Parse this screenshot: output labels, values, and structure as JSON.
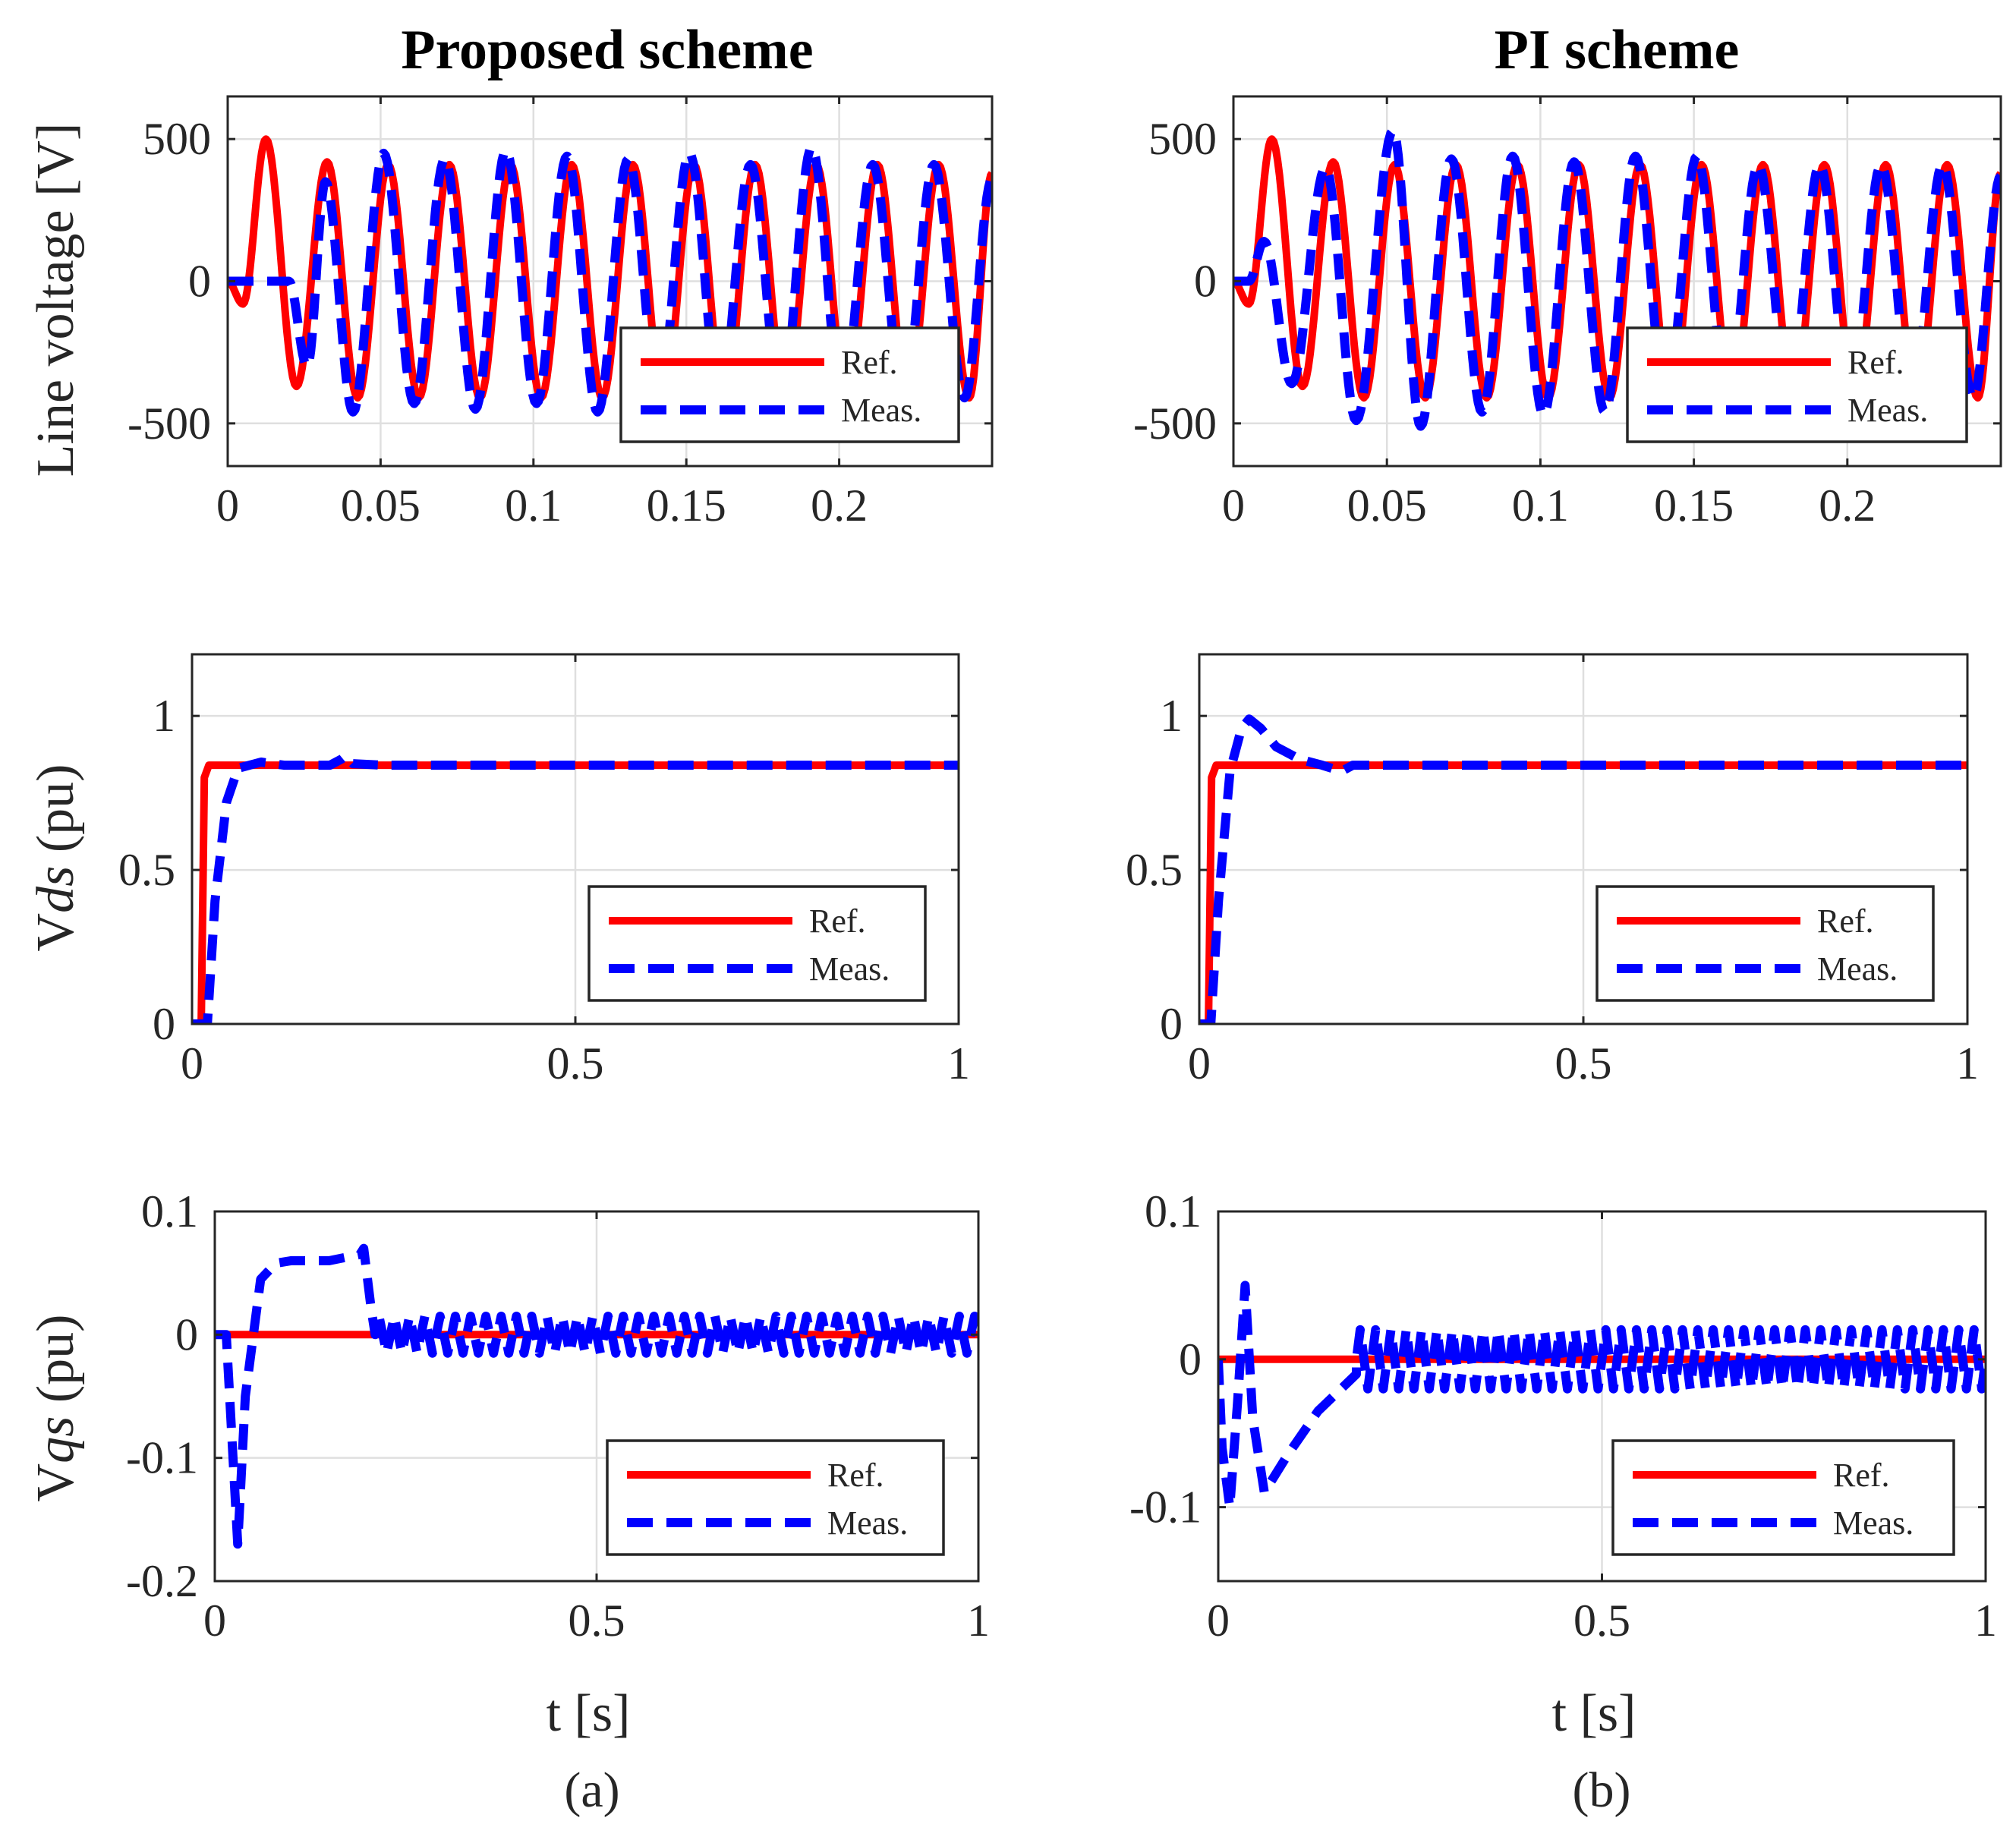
{
  "figure": {
    "col_titles": [
      "Proposed scheme",
      "PI scheme"
    ],
    "captions": [
      "(a)",
      "(b)"
    ],
    "xlabel": "t  [s]",
    "legend": {
      "ref": "Ref.",
      "meas": "Meas."
    },
    "colors": {
      "ref": "#ff0000",
      "meas": "#0000ff",
      "grid": "#dfdfdf",
      "axis": "#262626"
    }
  },
  "ylabels": {
    "line_voltage": "Line voltage [V]",
    "vds_prefix": "V",
    "vds_italic": "ds",
    "vds_suffix": " (pu)",
    "vqs_prefix": "V",
    "vqs_italic": "qs",
    "vqs_suffix": " (pu)"
  },
  "chart_data": [
    {
      "id": "a_voltage",
      "type": "line",
      "panel": "(a)",
      "row": 1,
      "xlim": [
        0,
        0.25
      ],
      "ylim": [
        -650,
        650
      ],
      "xticks": [
        0,
        0.05,
        0.1,
        0.15,
        0.2
      ],
      "xtick_labels": [
        "0",
        "0.05",
        "0.1",
        "0.15",
        "0.2"
      ],
      "yticks": [
        -500,
        0,
        500
      ],
      "ytick_labels": [
        "-500",
        "0",
        "500"
      ],
      "legend_position": "lower-right",
      "series": [
        {
          "name": "Ref.",
          "style": "solid",
          "description": "sinusoid, ~50 Hz, peak ~500 V at start settling to ~410 V",
          "x": [
            0,
            0.005,
            0.0125,
            0.0225,
            0.0325,
            0.0425,
            0.0525,
            0.0625,
            0.0725,
            0.0825,
            0.0925,
            0.1025,
            0.1125,
            0.1225,
            0.1325,
            0.1425,
            0.1525,
            0.1625,
            0.1725,
            0.1825,
            0.1925,
            0.2025,
            0.2125,
            0.2225,
            0.2325,
            0.2425,
            0.25
          ],
          "y": [
            0,
            -80,
            500,
            -370,
            420,
            -410,
            410,
            -410,
            410,
            -410,
            410,
            -410,
            410,
            -410,
            410,
            -410,
            410,
            -410,
            410,
            -410,
            410,
            -410,
            410,
            -410,
            410,
            -410,
            380
          ]
        },
        {
          "name": "Meas.",
          "style": "dashed",
          "description": "zero until ~0.02 s then tracks reference with small overshoot",
          "x": [
            0,
            0.02,
            0.026,
            0.032,
            0.041,
            0.051,
            0.061,
            0.071,
            0.081,
            0.091,
            0.101,
            0.111,
            0.121,
            0.131,
            0.141,
            0.151,
            0.161,
            0.171,
            0.181,
            0.191,
            0.201,
            0.211,
            0.221,
            0.231,
            0.241,
            0.25
          ],
          "y": [
            0,
            0,
            -300,
            350,
            -460,
            450,
            -430,
            430,
            -450,
            460,
            -430,
            440,
            -460,
            430,
            -400,
            450,
            -410,
            410,
            -420,
            470,
            -410,
            410,
            -410,
            410,
            -410,
            360
          ]
        }
      ]
    },
    {
      "id": "b_voltage",
      "type": "line",
      "panel": "(b)",
      "row": 1,
      "xlim": [
        0,
        0.25
      ],
      "ylim": [
        -650,
        650
      ],
      "xticks": [
        0,
        0.05,
        0.1,
        0.15,
        0.2
      ],
      "xtick_labels": [
        "0",
        "0.05",
        "0.1",
        "0.15",
        "0.2"
      ],
      "yticks": [
        -500,
        0,
        500
      ],
      "ytick_labels": [
        "-500",
        "0",
        "500"
      ],
      "legend_position": "lower-right",
      "series": [
        {
          "name": "Ref.",
          "style": "solid",
          "x": [
            0,
            0.005,
            0.0125,
            0.0225,
            0.0325,
            0.0425,
            0.0525,
            0.0625,
            0.0725,
            0.0825,
            0.0925,
            0.1025,
            0.1125,
            0.1225,
            0.1325,
            0.1425,
            0.1525,
            0.1625,
            0.1725,
            0.1825,
            0.1925,
            0.2025,
            0.2125,
            0.2225,
            0.2325,
            0.2425,
            0.25
          ],
          "y": [
            0,
            -80,
            500,
            -370,
            420,
            -410,
            410,
            -410,
            410,
            -410,
            410,
            -410,
            410,
            -410,
            410,
            -410,
            410,
            -410,
            410,
            -410,
            410,
            -410,
            410,
            -410,
            410,
            -410,
            380
          ]
        },
        {
          "name": "Meas.",
          "style": "dashed",
          "x": [
            0,
            0.005,
            0.01,
            0.019,
            0.03,
            0.04,
            0.052,
            0.061,
            0.071,
            0.081,
            0.091,
            0.101,
            0.111,
            0.121,
            0.131,
            0.141,
            0.151,
            0.161,
            0.171,
            0.181,
            0.191,
            0.201,
            0.211,
            0.221,
            0.231,
            0.241,
            0.25
          ],
          "y": [
            0,
            0,
            140,
            -360,
            400,
            -490,
            530,
            -510,
            430,
            -460,
            440,
            -470,
            420,
            -460,
            440,
            -410,
            440,
            -410,
            410,
            -410,
            410,
            -410,
            410,
            -410,
            410,
            -410,
            370
          ]
        }
      ]
    },
    {
      "id": "a_vds",
      "type": "line",
      "panel": "(a)",
      "row": 2,
      "xlim": [
        0,
        1
      ],
      "ylim": [
        0,
        1.2
      ],
      "xticks": [
        0,
        0.5,
        1
      ],
      "xtick_labels": [
        "0",
        "0.5",
        "1"
      ],
      "yticks": [
        0,
        0.5,
        1
      ],
      "ytick_labels": [
        "0",
        "0.5",
        "1"
      ],
      "legend_position": "lower-right",
      "series": [
        {
          "name": "Ref.",
          "style": "solid",
          "x": [
            0,
            0.012,
            0.016,
            0.022,
            1
          ],
          "y": [
            0,
            0,
            0.8,
            0.84,
            0.84
          ]
        },
        {
          "name": "Meas.",
          "style": "dashed",
          "x": [
            0,
            0.02,
            0.03,
            0.045,
            0.06,
            0.09,
            0.12,
            0.18,
            0.195,
            0.2,
            0.21,
            0.25,
            1
          ],
          "y": [
            0,
            0,
            0.4,
            0.72,
            0.83,
            0.85,
            0.84,
            0.84,
            0.86,
            0.87,
            0.845,
            0.84,
            0.84
          ]
        }
      ]
    },
    {
      "id": "b_vds",
      "type": "line",
      "panel": "(b)",
      "row": 2,
      "xlim": [
        0,
        1
      ],
      "ylim": [
        0,
        1.2
      ],
      "xticks": [
        0,
        0.5,
        1
      ],
      "xtick_labels": [
        "0",
        "0.5",
        "1"
      ],
      "yticks": [
        0,
        0.5,
        1
      ],
      "ytick_labels": [
        "0",
        "0.5",
        "1"
      ],
      "legend_position": "lower-right",
      "series": [
        {
          "name": "Ref.",
          "style": "solid",
          "x": [
            0,
            0.012,
            0.016,
            0.022,
            1
          ],
          "y": [
            0,
            0,
            0.8,
            0.84,
            0.84
          ]
        },
        {
          "name": "Meas.",
          "style": "dashed",
          "x": [
            0,
            0.015,
            0.025,
            0.04,
            0.055,
            0.065,
            0.08,
            0.1,
            0.13,
            0.16,
            0.185,
            0.2,
            1
          ],
          "y": [
            0,
            0,
            0.4,
            0.82,
            0.96,
            0.99,
            0.96,
            0.9,
            0.86,
            0.84,
            0.82,
            0.84,
            0.84
          ]
        }
      ]
    },
    {
      "id": "a_vqs",
      "type": "line",
      "panel": "(a)",
      "row": 3,
      "xlim": [
        0,
        1
      ],
      "ylim": [
        -0.2,
        0.1
      ],
      "xticks": [
        0,
        0.5,
        1
      ],
      "xtick_labels": [
        "0",
        "0.5",
        "1"
      ],
      "yticks": [
        -0.2,
        -0.1,
        0,
        0.1
      ],
      "ytick_labels": [
        "-0.2",
        "-0.1",
        "0",
        "0.1"
      ],
      "legend_position": "lower-right",
      "series": [
        {
          "name": "Ref.",
          "style": "solid",
          "x": [
            0,
            1
          ],
          "y": [
            0,
            0
          ]
        },
        {
          "name": "Meas.",
          "style": "dashed",
          "description": "dip to -0.17 at ~0.03 s, plateau ~0.06 until 0.2 s, then oscillates about 0 with amplitude ~0.015",
          "x": [
            0,
            0.015,
            0.03,
            0.04,
            0.06,
            0.08,
            0.1,
            0.15,
            0.19,
            0.195,
            0.205,
            0.21,
            1
          ],
          "y": [
            0,
            0,
            -0.17,
            -0.05,
            0.045,
            0.058,
            0.06,
            0.06,
            0.065,
            0.07,
            0.02,
            0,
            0
          ],
          "oscillation": {
            "from": 0.21,
            "amplitude": 0.015
          }
        }
      ]
    },
    {
      "id": "b_vqs",
      "type": "line",
      "panel": "(b)",
      "row": 3,
      "xlim": [
        0,
        1
      ],
      "ylim": [
        -0.15,
        0.1
      ],
      "xticks": [
        0,
        0.5,
        1
      ],
      "xtick_labels": [
        "0",
        "0.5",
        "1"
      ],
      "yticks": [
        -0.1,
        0,
        0.1
      ],
      "ytick_labels": [
        "-0.1",
        "0",
        "0.1"
      ],
      "legend_position": "lower-right",
      "series": [
        {
          "name": "Ref.",
          "style": "solid",
          "x": [
            0,
            1
          ],
          "y": [
            0,
            0
          ]
        },
        {
          "name": "Meas.",
          "style": "dashed",
          "description": "swings between -0.1 and 0.05 early, recovers by ~0.18 s, then oscillates about 0 with amplitude ~0.02",
          "x": [
            0,
            0.005,
            0.015,
            0.025,
            0.035,
            0.045,
            0.06,
            0.09,
            0.13,
            0.16,
            0.18,
            0.19,
            1
          ],
          "y": [
            0,
            -0.06,
            -0.1,
            -0.03,
            0.05,
            -0.04,
            -0.09,
            -0.065,
            -0.035,
            -0.02,
            -0.01,
            0,
            0
          ],
          "oscillation": {
            "from": 0.18,
            "amplitude": 0.02
          }
        }
      ]
    }
  ]
}
